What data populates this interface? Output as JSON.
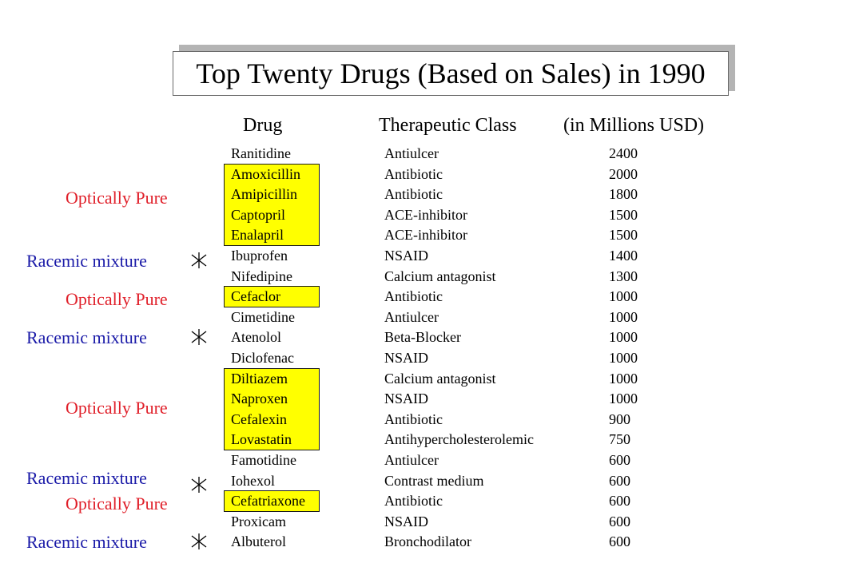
{
  "title": "Top Twenty Drugs (Based on Sales) in 1990",
  "headers": {
    "drug": "Drug",
    "therapeutic_class": "Therapeutic Class",
    "sales": "(in Millions USD)"
  },
  "colors": {
    "optically_pure": "#e0202a",
    "racemic_mixture": "#1a1aa8",
    "highlight": "#ffff00"
  },
  "rows": [
    {
      "drug": "Ranitidine",
      "class": "Antiulcer",
      "sales": "2400"
    },
    {
      "drug": "Amoxicillin",
      "class": "Antibiotic",
      "sales": "2000"
    },
    {
      "drug": "Amipicillin",
      "class": "Antibiotic",
      "sales": "1800"
    },
    {
      "drug": "Captopril",
      "class": "ACE-inhibitor",
      "sales": "1500"
    },
    {
      "drug": "Enalapril",
      "class": "ACE-inhibitor",
      "sales": "1500"
    },
    {
      "drug": "Ibuprofen",
      "class": "NSAID",
      "sales": "1400"
    },
    {
      "drug": "Nifedipine",
      "class": "Calcium antagonist",
      "sales": "1300"
    },
    {
      "drug": "Cefaclor",
      "class": "Antibiotic",
      "sales": "1000"
    },
    {
      "drug": "Cimetidine",
      "class": "Antiulcer",
      "sales": "1000"
    },
    {
      "drug": "Atenolol",
      "class": "Beta-Blocker",
      "sales": "1000"
    },
    {
      "drug": "Diclofenac",
      "class": "NSAID",
      "sales": "1000"
    },
    {
      "drug": "Diltiazem",
      "class": "Calcium antagonist",
      "sales": "1000"
    },
    {
      "drug": "Naproxen",
      "class": "NSAID",
      "sales": "1000"
    },
    {
      "drug": "Cefalexin",
      "class": "Antibiotic",
      "sales": "900"
    },
    {
      "drug": "Lovastatin",
      "class": "Antihypercholesterolemic",
      "sales": "750"
    },
    {
      "drug": "Famotidine",
      "class": "Antiulcer",
      "sales": "600"
    },
    {
      "drug": "Iohexol",
      "class": "Contrast medium",
      "sales": "600"
    },
    {
      "drug": "Cefatriaxone",
      "class": "Antibiotic",
      "sales": "600"
    },
    {
      "drug": "Proxicam",
      "class": "NSAID",
      "sales": "600"
    },
    {
      "drug": "Albuterol",
      "class": "Bronchodilator",
      "sales": "600"
    }
  ],
  "annotations": [
    {
      "label": "Optically Pure",
      "type": "optically_pure",
      "marker": "none"
    },
    {
      "label": "Racemic mixture",
      "type": "racemic_mixture",
      "marker": "asterisk-icon"
    },
    {
      "label": "Optically Pure",
      "type": "optically_pure",
      "marker": "none"
    },
    {
      "label": "Racemic mixture",
      "type": "racemic_mixture",
      "marker": "asterisk-icon"
    },
    {
      "label": "Optically Pure",
      "type": "optically_pure",
      "marker": "none"
    },
    {
      "label": "Racemic mixture",
      "type": "racemic_mixture",
      "marker": "asterisk-icon"
    },
    {
      "label": "Optically Pure",
      "type": "optically_pure",
      "marker": "none"
    },
    {
      "label": "Racemic mixture",
      "type": "racemic_mixture",
      "marker": "asterisk-icon"
    }
  ]
}
